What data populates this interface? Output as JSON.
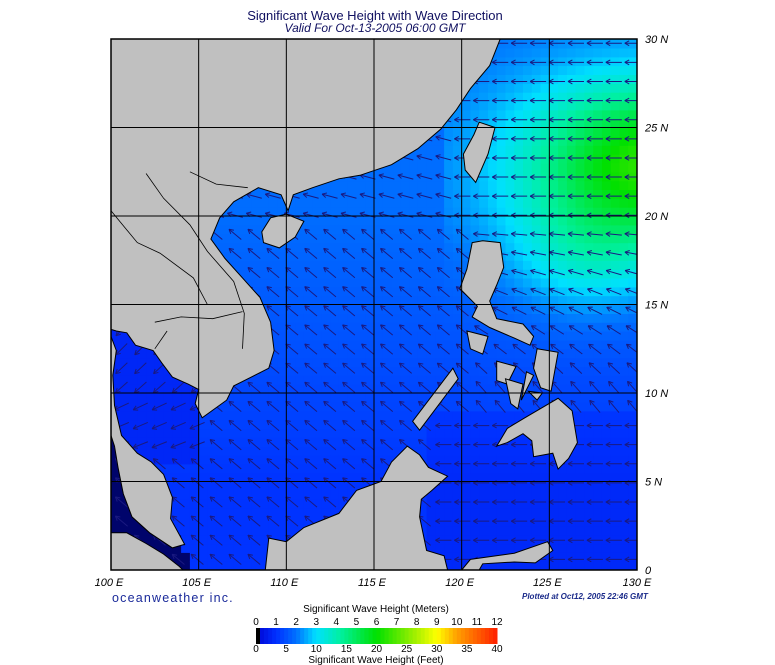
{
  "title": "Significant Wave Height with Wave Direction",
  "subtitle": "Valid For Oct-13-2005 06:00 GMT",
  "map": {
    "lon_range": [
      100,
      130
    ],
    "lat_range": [
      0,
      30
    ],
    "lon_labels": [
      "100 E",
      "105 E",
      "110 E",
      "115 E",
      "120 E",
      "125 E",
      "130 E"
    ],
    "lat_labels": [
      "0",
      "5 N",
      "10 N",
      "15 N",
      "20 N",
      "25 N",
      "30 N"
    ],
    "land_color": "#c0c0c0",
    "arrow_color": "#1a1a80"
  },
  "logo": "oceanweather inc.",
  "plotted": "Plotted at Oct12, 2005 22:46 GMT",
  "colorbar": {
    "label_meters": "Significant Wave Height (Meters)",
    "label_feet": "Significant Wave Height (Feet)",
    "meters_ticks": [
      "0",
      "1",
      "2",
      "3",
      "4",
      "5",
      "6",
      "7",
      "8",
      "9",
      "10",
      "11",
      "12"
    ],
    "feet_ticks": [
      "0",
      "5",
      "10",
      "15",
      "20",
      "25",
      "30",
      "35",
      "40"
    ],
    "stops": [
      {
        "m": 0,
        "color": "#000040"
      },
      {
        "m": 0.3,
        "color": "#0010e0"
      },
      {
        "m": 1,
        "color": "#0030ff"
      },
      {
        "m": 2,
        "color": "#0070ff"
      },
      {
        "m": 3,
        "color": "#00e0ff"
      },
      {
        "m": 4.2,
        "color": "#00f0a0"
      },
      {
        "m": 6,
        "color": "#00e000"
      },
      {
        "m": 8,
        "color": "#a8f000"
      },
      {
        "m": 9,
        "color": "#ffff00"
      },
      {
        "m": 10,
        "color": "#ffa000"
      },
      {
        "m": 12,
        "color": "#ff2000"
      }
    ]
  }
}
